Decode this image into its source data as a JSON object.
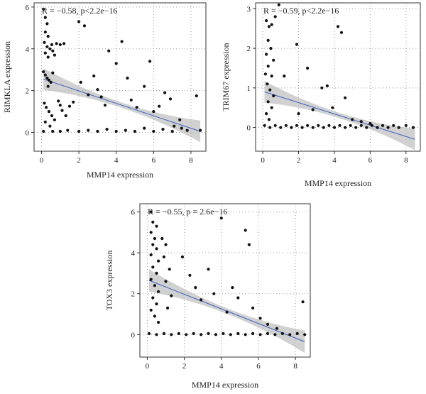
{
  "chart_data": [
    {
      "id": "rimkla",
      "type": "scatter",
      "xlabel": "MMP14 expression",
      "ylabel": "RIMKLA expression",
      "annotation": "R = −0.58, p<2.2e−16",
      "xlim": [
        -0.4,
        8.8
      ],
      "ylim": [
        -0.9,
        6.2
      ],
      "xticks": [
        0,
        2,
        4,
        6,
        8
      ],
      "yticks": [
        0,
        2,
        4,
        6
      ],
      "grid": true,
      "fit_line": {
        "x": [
          0.1,
          8.5
        ],
        "y": [
          2.55,
          0.05
        ]
      },
      "points": [
        {
          "x": 0.1,
          "y": 5.9
        },
        {
          "x": 0.2,
          "y": 5.5
        },
        {
          "x": 0.3,
          "y": 5.2
        },
        {
          "x": 0.2,
          "y": 4.8
        },
        {
          "x": 0.35,
          "y": 4.6
        },
        {
          "x": 0.15,
          "y": 4.3
        },
        {
          "x": 0.3,
          "y": 4.1
        },
        {
          "x": 0.45,
          "y": 4.0
        },
        {
          "x": 0.2,
          "y": 3.8
        },
        {
          "x": 0.35,
          "y": 3.6
        },
        {
          "x": 0.55,
          "y": 4.2
        },
        {
          "x": 0.6,
          "y": 3.9
        },
        {
          "x": 0.7,
          "y": 3.7
        },
        {
          "x": 0.8,
          "y": 4.25
        },
        {
          "x": 1.0,
          "y": 4.2
        },
        {
          "x": 1.2,
          "y": 4.25
        },
        {
          "x": 0.1,
          "y": 2.9
        },
        {
          "x": 0.2,
          "y": 2.75
        },
        {
          "x": 0.3,
          "y": 2.6
        },
        {
          "x": 0.4,
          "y": 2.5
        },
        {
          "x": 0.5,
          "y": 2.4
        },
        {
          "x": 0.6,
          "y": 2.85
        },
        {
          "x": 0.35,
          "y": 2.2
        },
        {
          "x": 0.15,
          "y": 1.4
        },
        {
          "x": 0.25,
          "y": 1.2
        },
        {
          "x": 0.4,
          "y": 1.0
        },
        {
          "x": 0.55,
          "y": 0.8
        },
        {
          "x": 0.7,
          "y": 0.6
        },
        {
          "x": 0.2,
          "y": 0.5
        },
        {
          "x": 0.45,
          "y": 0.3
        },
        {
          "x": 0.1,
          "y": 0.05
        },
        {
          "x": 0.6,
          "y": 0.05
        },
        {
          "x": 0.9,
          "y": 1.5
        },
        {
          "x": 1.0,
          "y": 1.3
        },
        {
          "x": 1.1,
          "y": 1.05
        },
        {
          "x": 1.3,
          "y": 0.8
        },
        {
          "x": 1.5,
          "y": 1.25
        },
        {
          "x": 1.7,
          "y": 1.45
        },
        {
          "x": 2.0,
          "y": 5.3
        },
        {
          "x": 2.3,
          "y": 5.1
        },
        {
          "x": 2.1,
          "y": 2.4
        },
        {
          "x": 2.5,
          "y": 1.8
        },
        {
          "x": 2.8,
          "y": 2.7
        },
        {
          "x": 3.0,
          "y": 2.05
        },
        {
          "x": 3.2,
          "y": 1.7
        },
        {
          "x": 3.4,
          "y": 1.3
        },
        {
          "x": 3.6,
          "y": 3.9
        },
        {
          "x": 4.0,
          "y": 3.3
        },
        {
          "x": 4.3,
          "y": 4.35
        },
        {
          "x": 4.6,
          "y": 2.6
        },
        {
          "x": 4.8,
          "y": 1.55
        },
        {
          "x": 5.1,
          "y": 1.2
        },
        {
          "x": 5.5,
          "y": 2.2
        },
        {
          "x": 5.8,
          "y": 3.4
        },
        {
          "x": 6.0,
          "y": 1.0
        },
        {
          "x": 6.3,
          "y": 1.25
        },
        {
          "x": 6.6,
          "y": 1.9
        },
        {
          "x": 6.9,
          "y": 1.6
        },
        {
          "x": 7.1,
          "y": 0.3
        },
        {
          "x": 7.4,
          "y": 0.6
        },
        {
          "x": 7.8,
          "y": 0.1
        },
        {
          "x": 8.3,
          "y": 1.75
        },
        {
          "x": 8.5,
          "y": 0.1
        },
        {
          "x": 1.0,
          "y": 0.05
        },
        {
          "x": 1.4,
          "y": 0.1
        },
        {
          "x": 2.0,
          "y": 0.05
        },
        {
          "x": 2.5,
          "y": 0.1
        },
        {
          "x": 3.0,
          "y": 0.05
        },
        {
          "x": 3.5,
          "y": 0.15
        },
        {
          "x": 4.0,
          "y": 0.05
        },
        {
          "x": 4.5,
          "y": 0.1
        },
        {
          "x": 5.0,
          "y": 0.05
        },
        {
          "x": 5.5,
          "y": 0.2
        },
        {
          "x": 6.0,
          "y": 0.05
        },
        {
          "x": 6.5,
          "y": 0.15
        },
        {
          "x": 7.0,
          "y": 0.05
        },
        {
          "x": 7.5,
          "y": 0.2
        }
      ]
    },
    {
      "id": "trim67",
      "type": "scatter",
      "xlabel": "MMP14 expression",
      "ylabel": "TRIM67 expression",
      "annotation": "R = −0.59, p<2.2e−16",
      "xlim": [
        -0.4,
        8.8
      ],
      "ylim": [
        -0.6,
        3.15
      ],
      "xticks": [
        0,
        2,
        4,
        6,
        8
      ],
      "yticks": [
        0,
        1,
        2,
        3
      ],
      "grid": true,
      "fit_line": {
        "x": [
          0.1,
          8.5
        ],
        "y": [
          0.9,
          -0.3
        ]
      },
      "points": [
        {
          "x": 0.2,
          "y": 2.7
        },
        {
          "x": 0.35,
          "y": 2.55
        },
        {
          "x": 0.5,
          "y": 2.6
        },
        {
          "x": 0.3,
          "y": 2.2
        },
        {
          "x": 0.45,
          "y": 2.0
        },
        {
          "x": 0.2,
          "y": 1.85
        },
        {
          "x": 0.6,
          "y": 1.7
        },
        {
          "x": 0.3,
          "y": 1.55
        },
        {
          "x": 0.15,
          "y": 1.35
        },
        {
          "x": 0.5,
          "y": 1.3
        },
        {
          "x": 0.25,
          "y": 1.1
        },
        {
          "x": 0.4,
          "y": 0.95
        },
        {
          "x": 0.6,
          "y": 0.8
        },
        {
          "x": 0.3,
          "y": 0.65
        },
        {
          "x": 0.5,
          "y": 0.5
        },
        {
          "x": 0.2,
          "y": 0.35
        },
        {
          "x": 0.35,
          "y": 0.2
        },
        {
          "x": 0.9,
          "y": 3.1
        },
        {
          "x": 0.7,
          "y": 2.8
        },
        {
          "x": 1.2,
          "y": 1.3
        },
        {
          "x": 1.9,
          "y": 2.1
        },
        {
          "x": 2.5,
          "y": 1.5
        },
        {
          "x": 3.3,
          "y": 1.0
        },
        {
          "x": 3.6,
          "y": 1.05
        },
        {
          "x": 4.2,
          "y": 2.55
        },
        {
          "x": 4.4,
          "y": 2.4
        },
        {
          "x": 4.6,
          "y": 0.75
        },
        {
          "x": 3.9,
          "y": 0.5
        },
        {
          "x": 2.8,
          "y": 0.45
        },
        {
          "x": 2.0,
          "y": 0.35
        },
        {
          "x": 5.0,
          "y": 0.2
        },
        {
          "x": 5.5,
          "y": 0.15
        },
        {
          "x": 6.0,
          "y": 0.1
        },
        {
          "x": 0.1,
          "y": 0.05
        },
        {
          "x": 0.4,
          "y": 0.0
        },
        {
          "x": 0.7,
          "y": 0.05
        },
        {
          "x": 1.0,
          "y": 0.0
        },
        {
          "x": 1.3,
          "y": 0.05
        },
        {
          "x": 1.6,
          "y": 0.0
        },
        {
          "x": 1.9,
          "y": 0.05
        },
        {
          "x": 2.2,
          "y": 0.0
        },
        {
          "x": 2.5,
          "y": 0.05
        },
        {
          "x": 2.8,
          "y": 0.0
        },
        {
          "x": 3.1,
          "y": 0.05
        },
        {
          "x": 3.4,
          "y": 0.0
        },
        {
          "x": 3.7,
          "y": 0.05
        },
        {
          "x": 4.0,
          "y": 0.0
        },
        {
          "x": 4.3,
          "y": 0.05
        },
        {
          "x": 4.6,
          "y": 0.0
        },
        {
          "x": 4.9,
          "y": 0.05
        },
        {
          "x": 5.2,
          "y": 0.0
        },
        {
          "x": 5.5,
          "y": 0.05
        },
        {
          "x": 5.8,
          "y": 0.0
        },
        {
          "x": 6.1,
          "y": 0.05
        },
        {
          "x": 6.4,
          "y": 0.0
        },
        {
          "x": 6.7,
          "y": 0.05
        },
        {
          "x": 7.0,
          "y": 0.0
        },
        {
          "x": 7.3,
          "y": 0.05
        },
        {
          "x": 7.6,
          "y": 0.0
        },
        {
          "x": 8.0,
          "y": 0.05
        },
        {
          "x": 8.4,
          "y": 0.0
        }
      ]
    },
    {
      "id": "tox3",
      "type": "scatter",
      "xlabel": "MMP14 expression",
      "ylabel": "TOX3 expression",
      "annotation": "R = −0.55, p = 2.6e−16",
      "xlim": [
        -0.4,
        8.8
      ],
      "ylim": [
        -1.1,
        6.4
      ],
      "xticks": [
        0,
        2,
        4,
        6,
        8
      ],
      "yticks": [
        0,
        2,
        4,
        6
      ],
      "grid": true,
      "fit_line": {
        "x": [
          0.1,
          8.5
        ],
        "y": [
          2.65,
          -0.35
        ]
      },
      "points": [
        {
          "x": 0.2,
          "y": 6.0
        },
        {
          "x": 0.3,
          "y": 5.5
        },
        {
          "x": 0.5,
          "y": 5.3
        },
        {
          "x": 0.2,
          "y": 5.0
        },
        {
          "x": 0.4,
          "y": 4.7
        },
        {
          "x": 0.3,
          "y": 4.4
        },
        {
          "x": 0.5,
          "y": 4.2
        },
        {
          "x": 0.2,
          "y": 3.9
        },
        {
          "x": 0.6,
          "y": 3.6
        },
        {
          "x": 0.3,
          "y": 3.3
        },
        {
          "x": 0.5,
          "y": 3.0
        },
        {
          "x": 0.2,
          "y": 2.7
        },
        {
          "x": 0.4,
          "y": 2.4
        },
        {
          "x": 0.6,
          "y": 2.1
        },
        {
          "x": 0.3,
          "y": 1.8
        },
        {
          "x": 0.5,
          "y": 1.5
        },
        {
          "x": 0.2,
          "y": 1.2
        },
        {
          "x": 0.4,
          "y": 0.9
        },
        {
          "x": 0.6,
          "y": 0.6
        },
        {
          "x": 0.8,
          "y": 4.7
        },
        {
          "x": 1.0,
          "y": 4.4
        },
        {
          "x": 0.9,
          "y": 3.8
        },
        {
          "x": 1.2,
          "y": 3.2
        },
        {
          "x": 1.0,
          "y": 2.6
        },
        {
          "x": 1.3,
          "y": 1.9
        },
        {
          "x": 1.1,
          "y": 1.3
        },
        {
          "x": 1.9,
          "y": 3.8
        },
        {
          "x": 2.3,
          "y": 2.9
        },
        {
          "x": 2.6,
          "y": 2.3
        },
        {
          "x": 2.9,
          "y": 1.7
        },
        {
          "x": 3.3,
          "y": 3.2
        },
        {
          "x": 3.6,
          "y": 2.0
        },
        {
          "x": 4.0,
          "y": 5.7
        },
        {
          "x": 4.3,
          "y": 1.1
        },
        {
          "x": 4.6,
          "y": 2.3
        },
        {
          "x": 4.9,
          "y": 1.8
        },
        {
          "x": 5.3,
          "y": 5.1
        },
        {
          "x": 5.5,
          "y": 4.4
        },
        {
          "x": 5.7,
          "y": 1.3
        },
        {
          "x": 6.1,
          "y": 0.8
        },
        {
          "x": 6.5,
          "y": 0.5
        },
        {
          "x": 7.0,
          "y": 0.3
        },
        {
          "x": 8.4,
          "y": 1.6
        },
        {
          "x": 0.1,
          "y": 0.05
        },
        {
          "x": 0.5,
          "y": 0.0
        },
        {
          "x": 0.9,
          "y": 0.05
        },
        {
          "x": 1.3,
          "y": 0.0
        },
        {
          "x": 1.7,
          "y": 0.05
        },
        {
          "x": 2.1,
          "y": 0.0
        },
        {
          "x": 2.5,
          "y": 0.05
        },
        {
          "x": 2.9,
          "y": 0.0
        },
        {
          "x": 3.3,
          "y": 0.05
        },
        {
          "x": 3.7,
          "y": 0.0
        },
        {
          "x": 4.1,
          "y": 0.05
        },
        {
          "x": 4.5,
          "y": 0.0
        },
        {
          "x": 4.9,
          "y": 0.05
        },
        {
          "x": 5.3,
          "y": 0.0
        },
        {
          "x": 5.7,
          "y": 0.05
        },
        {
          "x": 6.1,
          "y": 0.0
        },
        {
          "x": 6.5,
          "y": 0.05
        },
        {
          "x": 6.9,
          "y": 0.0
        },
        {
          "x": 7.3,
          "y": 0.05
        },
        {
          "x": 7.7,
          "y": 0.0
        },
        {
          "x": 8.1,
          "y": 0.05
        },
        {
          "x": 8.5,
          "y": 0.0
        }
      ]
    }
  ]
}
